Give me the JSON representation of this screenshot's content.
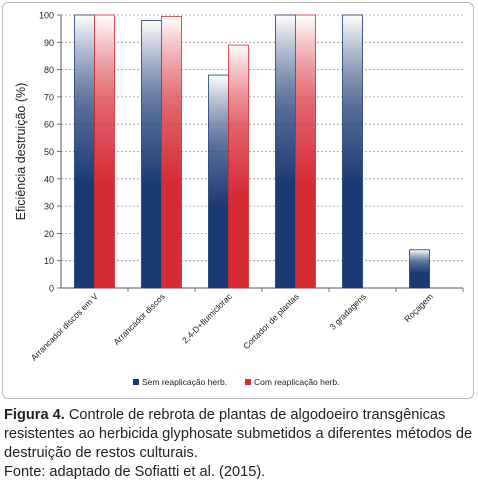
{
  "chart_data": {
    "type": "bar",
    "ylabel": "Eficiência destruição (%)",
    "ylim": [
      0,
      100
    ],
    "yticks": [
      0,
      10,
      20,
      30,
      40,
      50,
      60,
      70,
      80,
      90,
      100
    ],
    "grid": true,
    "legend_position": "bottom",
    "categories": [
      "Arrancador discos em V",
      "Arrancador discos",
      "2,4-D+flumiclorac",
      "Cortador de plantas",
      "3 gradagens",
      "Roçagem"
    ],
    "series": [
      {
        "name": "Sem reaplicação herb.",
        "color": "#1b3a73",
        "values": [
          100,
          98,
          78,
          100,
          100,
          14
        ]
      },
      {
        "name": "Com reaplicação herb.",
        "color": "#d62a35",
        "values": [
          100,
          99.5,
          89,
          100,
          null,
          null
        ]
      }
    ]
  },
  "caption": {
    "label": "Figura 4.",
    "text": "Controle de rebrota de plantas de algodoeiro transgênicas resistentes ao herbicida glyphosate submetidos a diferentes métodos de destruição de restos culturais.",
    "source": "Fonte: adaptado de Sofiatti et al. (2015)."
  }
}
